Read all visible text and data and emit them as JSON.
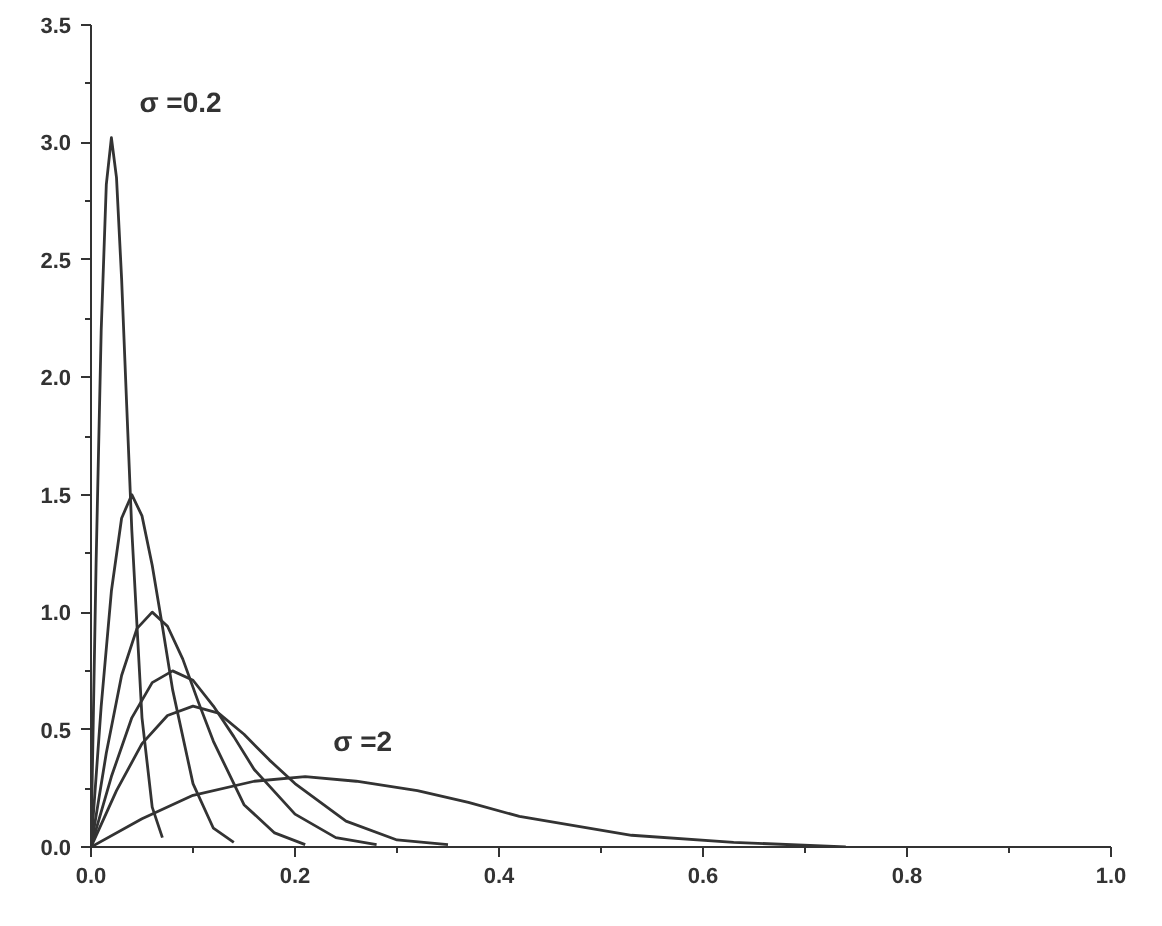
{
  "chart_data": {
    "type": "line",
    "xlim": [
      0,
      1.0
    ],
    "ylim": [
      0,
      3.5
    ],
    "xticks": [
      {
        "value": 0,
        "label": "0.0"
      },
      0.2,
      0.4,
      0.6,
      0.8,
      {
        "value": 1,
        "label": "1.0"
      }
    ],
    "yticks": [
      {
        "value": 0,
        "label": "0.0"
      },
      0.5,
      {
        "value": 1,
        "label": "1.0"
      },
      1.5,
      {
        "value": 2,
        "label": "2.0"
      },
      2.5,
      {
        "value": 3,
        "label": "3.0"
      },
      3.5
    ],
    "grid": false,
    "marker": "none",
    "line_style": "solid",
    "series": [
      {
        "name": "σ =0.2",
        "color": "#333333",
        "x": [
          0,
          0.005,
          0.01,
          0.015,
          0.02,
          0.025,
          0.03,
          0.035,
          0.04,
          0.05,
          0.06,
          0.07
        ],
        "values": [
          0,
          1.21,
          2.2,
          2.82,
          3.02,
          2.85,
          2.42,
          1.88,
          1.35,
          0.55,
          0.17,
          0.04
        ]
      },
      {
        "color": "#333333",
        "x": [
          0,
          0.01,
          0.02,
          0.03,
          0.04,
          0.05,
          0.06,
          0.07,
          0.08,
          0.1,
          0.12,
          0.14
        ],
        "values": [
          0,
          0.6,
          1.09,
          1.4,
          1.5,
          1.41,
          1.2,
          0.94,
          0.67,
          0.27,
          0.08,
          0.02
        ]
      },
      {
        "color": "#333333",
        "x": [
          0,
          0.015,
          0.03,
          0.045,
          0.06,
          0.075,
          0.09,
          0.105,
          0.12,
          0.15,
          0.18,
          0.21
        ],
        "values": [
          0,
          0.4,
          0.73,
          0.93,
          1.0,
          0.94,
          0.8,
          0.62,
          0.45,
          0.18,
          0.06,
          0.01
        ]
      },
      {
        "color": "#333333",
        "x": [
          0,
          0.02,
          0.04,
          0.06,
          0.08,
          0.1,
          0.12,
          0.14,
          0.16,
          0.2,
          0.24,
          0.28
        ],
        "values": [
          0,
          0.3,
          0.55,
          0.7,
          0.75,
          0.71,
          0.6,
          0.47,
          0.33,
          0.14,
          0.04,
          0.01
        ]
      },
      {
        "color": "#333333",
        "x": [
          0,
          0.025,
          0.05,
          0.075,
          0.1,
          0.125,
          0.15,
          0.175,
          0.2,
          0.25,
          0.3,
          0.35
        ],
        "values": [
          0,
          0.24,
          0.44,
          0.56,
          0.6,
          0.57,
          0.48,
          0.37,
          0.27,
          0.11,
          0.03,
          0.01
        ]
      },
      {
        "name": "σ =2",
        "color": "#333333",
        "x": [
          0,
          0.05,
          0.1,
          0.16,
          0.21,
          0.26,
          0.32,
          0.37,
          0.42,
          0.53,
          0.63,
          0.74
        ],
        "values": [
          0,
          0.12,
          0.22,
          0.28,
          0.3,
          0.28,
          0.24,
          0.19,
          0.13,
          0.05,
          0.02,
          0
        ]
      }
    ]
  }
}
